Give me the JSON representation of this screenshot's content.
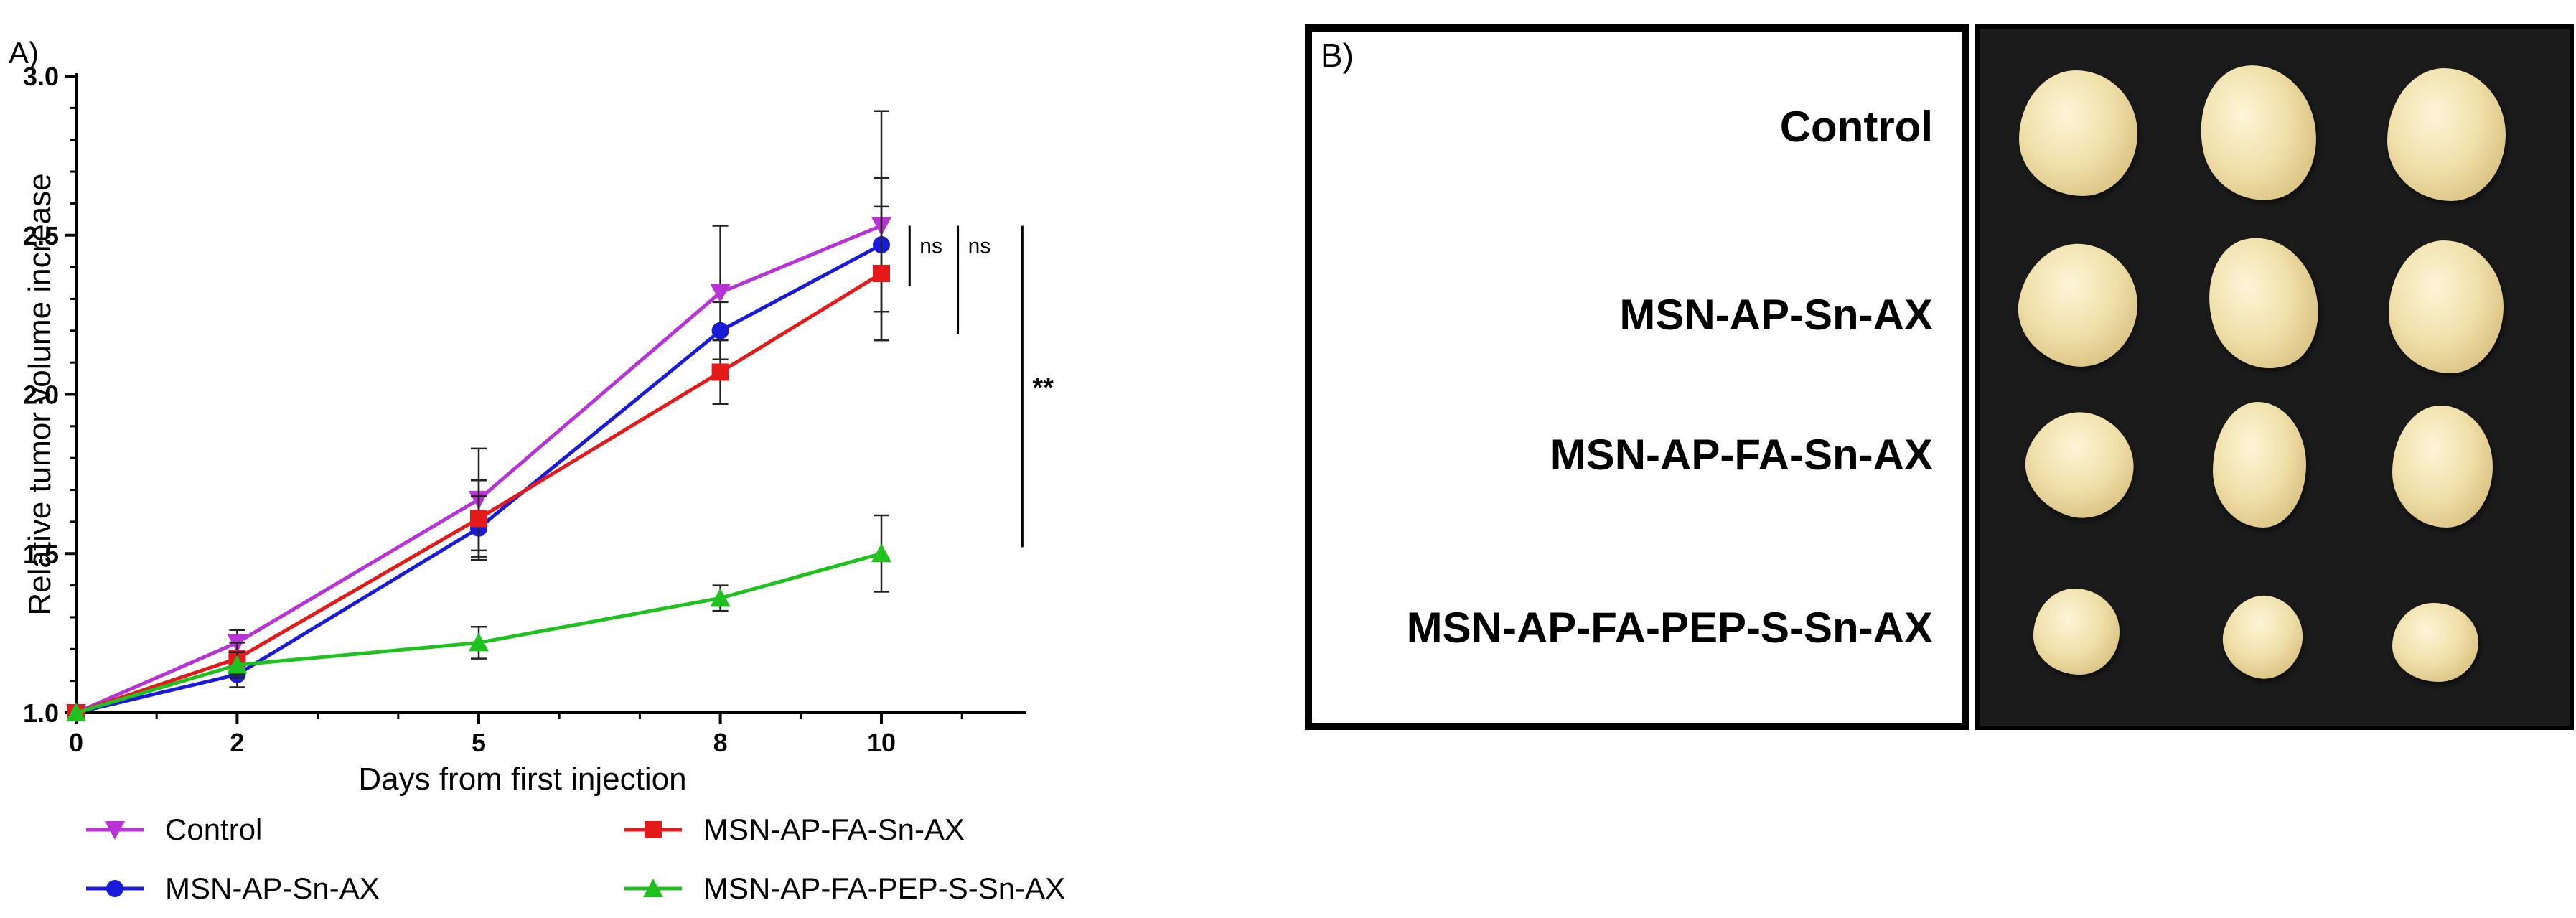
{
  "panel_a": {
    "label": "A)",
    "chart_data": {
      "type": "line",
      "xlabel": "Days from first injection",
      "ylabel": "Relative tumor volume increase",
      "x": [
        0,
        2,
        5,
        8,
        10
      ],
      "xlim": [
        0,
        11.8
      ],
      "ylim": [
        1.0,
        3.0
      ],
      "xticks": [
        0,
        2,
        5,
        8,
        10
      ],
      "yticks": [
        1.0,
        1.5,
        2.0,
        2.5,
        3.0
      ],
      "series": [
        {
          "name": "Control",
          "color": "#b833d6",
          "marker": "triangle-down",
          "values": [
            1.0,
            1.22,
            1.67,
            2.32,
            2.53
          ],
          "err": [
            0,
            0.04,
            0.16,
            0.21,
            0.36
          ]
        },
        {
          "name": "MSN-AP-Sn-AX",
          "color": "#1a1adb",
          "marker": "circle",
          "values": [
            1.0,
            1.12,
            1.58,
            2.2,
            2.47
          ],
          "err": [
            0,
            0.04,
            0.1,
            0.09,
            0.21
          ]
        },
        {
          "name": "MSN-AP-FA-Sn-AX",
          "color": "#e41a1a",
          "marker": "square",
          "values": [
            1.0,
            1.17,
            1.61,
            2.07,
            2.38
          ],
          "err": [
            0,
            0.05,
            0.12,
            0.1,
            0.21
          ]
        },
        {
          "name": "MSN-AP-FA-PEP-S-Sn-AX",
          "color": "#1fc11f",
          "marker": "triangle-up",
          "values": [
            1.0,
            1.15,
            1.22,
            1.36,
            1.5
          ],
          "err": [
            0,
            0.04,
            0.05,
            0.04,
            0.12
          ]
        }
      ],
      "annotations": [
        {
          "text": "ns",
          "from": 2.53,
          "to": 2.34,
          "x": 10.35
        },
        {
          "text": "ns",
          "from": 2.53,
          "to": 2.19,
          "x": 10.95
        },
        {
          "text": "**",
          "from": 2.53,
          "to": 1.52,
          "x": 11.75
        }
      ]
    }
  },
  "panel_b": {
    "label": "B)",
    "groups": [
      "Control",
      "MSN-AP-Sn-AX",
      "MSN-AP-FA-Sn-AX",
      "MSN-AP-FA-PEP-S-Sn-AX"
    ]
  }
}
